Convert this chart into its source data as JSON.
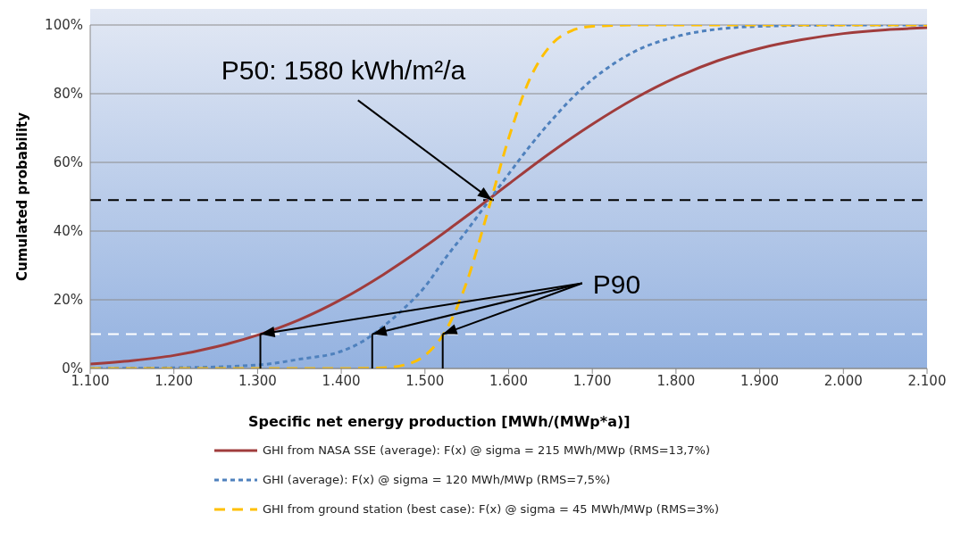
{
  "chart_data": {
    "type": "line",
    "xlabel": "Specific net energy production [MWh/(MWp*a)]",
    "ylabel": "Cumulated probability",
    "xlim": [
      1100,
      2100
    ],
    "xticks": [
      {
        "value": 1100,
        "label": "1.100"
      },
      {
        "value": 1200,
        "label": "1.200"
      },
      {
        "value": 1300,
        "label": "1.300"
      },
      {
        "value": 1400,
        "label": "1.400"
      },
      {
        "value": 1500,
        "label": "1.500"
      },
      {
        "value": 1600,
        "label": "1.600"
      },
      {
        "value": 1700,
        "label": "1.700"
      },
      {
        "value": 1800,
        "label": "1.800"
      },
      {
        "value": 1900,
        "label": "1.900"
      },
      {
        "value": 2000,
        "label": "2.000"
      },
      {
        "value": 2100,
        "label": "2.100"
      }
    ],
    "ylim": [
      0,
      100
    ],
    "yticks": [
      {
        "value": 0,
        "label": "0%"
      },
      {
        "value": 20,
        "label": "20%"
      },
      {
        "value": 40,
        "label": "40%"
      },
      {
        "value": 60,
        "label": "60%"
      },
      {
        "value": 80,
        "label": "80%"
      },
      {
        "value": 100,
        "label": "100%"
      }
    ],
    "grid": "y",
    "legend": "bottom",
    "marker": "none",
    "series": [
      {
        "name": "GHI from NASA SSE (average): F(x) @ sigma = 215 MWh/MWp (RMS=13,7%)",
        "color": "#a03c3c",
        "line_style": "solid",
        "x": [
          1100,
          1150,
          1200,
          1250,
          1300,
          1350,
          1400,
          1450,
          1500,
          1550,
          1600,
          1650,
          1700,
          1750,
          1800,
          1850,
          1900,
          1950,
          2000,
          2050,
          2100
        ],
        "values": [
          1.3,
          2.3,
          3.8,
          6.3,
          9.7,
          14.2,
          20.1,
          27.3,
          35.5,
          44.4,
          53.7,
          62.8,
          71.1,
          78.5,
          84.7,
          89.6,
          93.2,
          95.7,
          97.5,
          98.6,
          99.2
        ]
      },
      {
        "name": "GHI (average): F(x) @ sigma = 120 MWh/MWp (RMS=7,5%)",
        "color": "#4f81bd",
        "line_style": "dotted",
        "x": [
          1100,
          1200,
          1300,
          1350,
          1400,
          1425,
          1450,
          1475,
          1500,
          1525,
          1550,
          1575,
          1600,
          1625,
          1650,
          1675,
          1700,
          1750,
          1800,
          1850,
          1900,
          2000,
          2100
        ],
        "values": [
          0,
          0.2,
          1.0,
          2.7,
          5.0,
          7.8,
          12.2,
          17.5,
          23.8,
          32.3,
          40.1,
          48.4,
          56.6,
          64.6,
          71.9,
          78.5,
          84.1,
          92.2,
          96.6,
          98.8,
          99.6,
          100,
          100
        ]
      },
      {
        "name": "GHI from ground station (best case): F(x) @ sigma = 45 MWh/MWp (RMS=3%)",
        "color": "#ffc000",
        "line_style": "dashed",
        "x": [
          1100,
          1400,
          1450,
          1475,
          1500,
          1525,
          1550,
          1575,
          1600,
          1625,
          1650,
          1675,
          1700,
          1750,
          2100
        ],
        "values": [
          0,
          0,
          0.2,
          1.0,
          3.8,
          11.1,
          25.2,
          45.6,
          67.0,
          84.1,
          94.0,
          98.3,
          99.6,
          100,
          100
        ]
      }
    ],
    "ref_lines": [
      {
        "axis": "y",
        "value": 49,
        "color": "#000000",
        "line_style": "dashed"
      },
      {
        "axis": "y",
        "value": 10,
        "color": "#ffffff",
        "line_style": "dashed"
      }
    ],
    "annotations": [
      {
        "text": "P50: 1580 kWh/m²/a",
        "x": 1580,
        "y": 49
      },
      {
        "text": "P90",
        "x": 1437,
        "y": 10
      }
    ]
  }
}
